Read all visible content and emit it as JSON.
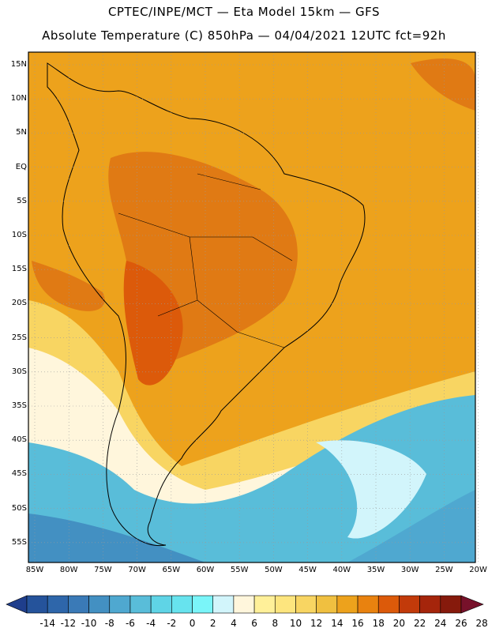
{
  "title_line_1": "CPTEC/INPE/MCT —  Eta Model 15km — GFS",
  "title_line_2": "Absolute Temperature (C) 850hPa — 04/04/2021 12UTC fct=92h",
  "lat_labels": [
    "15N",
    "10N",
    "5N",
    "EQ",
    "5S",
    "10S",
    "15S",
    "20S",
    "25S",
    "30S",
    "35S",
    "40S",
    "45S",
    "50S",
    "55S"
  ],
  "lon_labels": [
    "85W",
    "80W",
    "75W",
    "70W",
    "65W",
    "60W",
    "55W",
    "50W",
    "45W",
    "40W",
    "35W",
    "30W",
    "25W",
    "20W"
  ],
  "colorbar": {
    "labels": [
      "-14",
      "-12",
      "-10",
      "-8",
      "-6",
      "-4",
      "-2",
      "0",
      "2",
      "4",
      "6",
      "8",
      "10",
      "12",
      "14",
      "16",
      "18",
      "20",
      "22",
      "24",
      "26",
      "28"
    ],
    "colors": [
      "#1f3e8c",
      "#25539b",
      "#2e66aa",
      "#3a7ab7",
      "#4390c2",
      "#4fa8d0",
      "#59bdd9",
      "#5fd4e6",
      "#67e3ee",
      "#7af5f9",
      "#d2f5fb",
      "#fff6dc",
      "#fff099",
      "#fde57e",
      "#f8d562",
      "#f0c040",
      "#eda21c",
      "#e9820f",
      "#dc5a0a",
      "#c23a0a",
      "#a5250b",
      "#861a0c",
      "#77112a"
    ]
  },
  "map_legend": {
    "hot": "#e07a14",
    "warm": "#eda21c",
    "mild": "#f8d562",
    "cool": "#fff6dc",
    "cold": "#59bdd9",
    "colder": "#4390c2"
  }
}
